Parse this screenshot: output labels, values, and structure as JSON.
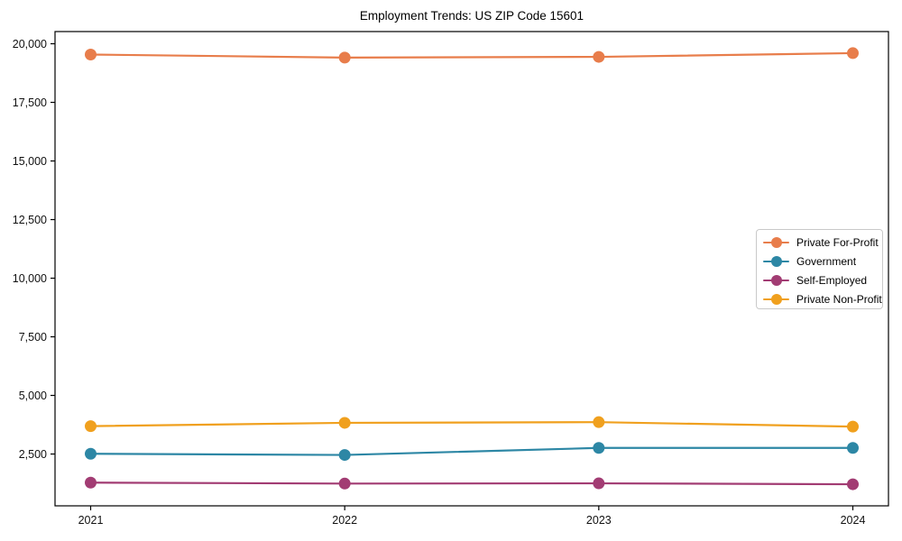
{
  "chart_data": {
    "type": "line",
    "title": "Employment Trends: US ZIP Code 15601",
    "xlabel": "",
    "ylabel": "",
    "categories": [
      "2021",
      "2022",
      "2023",
      "2024"
    ],
    "series": [
      {
        "name": "Private For-Profit",
        "color": "#E87D4B",
        "values": [
          19540,
          19410,
          19440,
          19600
        ]
      },
      {
        "name": "Government",
        "color": "#2D87A5",
        "values": [
          2510,
          2460,
          2760,
          2760
        ]
      },
      {
        "name": "Self-Employed",
        "color": "#A23C73",
        "values": [
          1280,
          1240,
          1250,
          1210
        ]
      },
      {
        "name": "Private Non-Profit",
        "color": "#F0A01E",
        "values": [
          3690,
          3830,
          3860,
          3670
        ]
      }
    ],
    "ylim": [
      290,
      20520
    ],
    "yticks": [
      2500,
      5000,
      7500,
      10000,
      12500,
      15000,
      17500,
      20000
    ],
    "ytick_labels": [
      "2,500",
      "5,000",
      "7,500",
      "10,000",
      "12,500",
      "15,000",
      "17,500",
      "20,000"
    ],
    "grid": false,
    "legend_position": "center right",
    "marker": "circle",
    "line_width": 2.2,
    "marker_diameter": 13,
    "axis_color": "#000000"
  }
}
